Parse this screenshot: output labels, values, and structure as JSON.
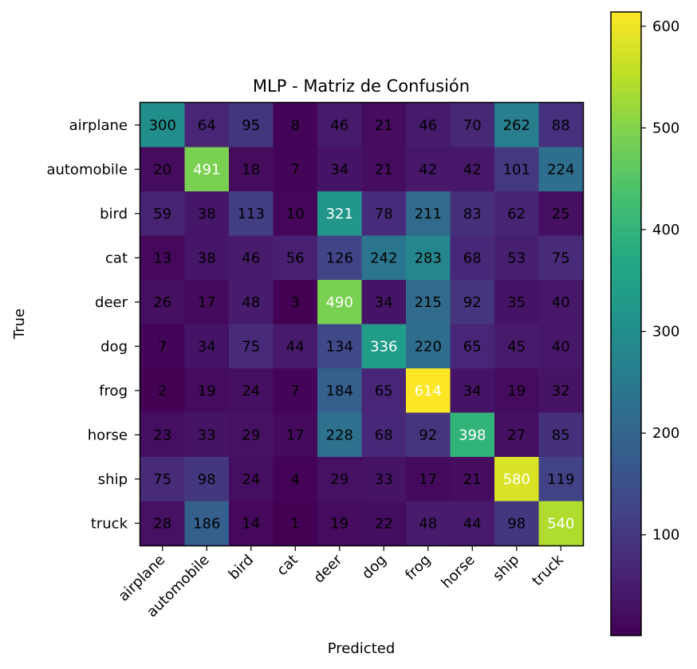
{
  "chart_data": {
    "type": "heatmap",
    "title": "MLP - Matriz de Confusión",
    "xlabel": "Predicted",
    "ylabel": "True",
    "x_categories": [
      "airplane",
      "automobile",
      "bird",
      "cat",
      "deer",
      "dog",
      "frog",
      "horse",
      "ship",
      "truck"
    ],
    "y_categories": [
      "airplane",
      "automobile",
      "bird",
      "cat",
      "deer",
      "dog",
      "frog",
      "horse",
      "ship",
      "truck"
    ],
    "values": [
      [
        300,
        64,
        95,
        8,
        46,
        21,
        46,
        70,
        262,
        88
      ],
      [
        20,
        491,
        18,
        7,
        34,
        21,
        42,
        42,
        101,
        224
      ],
      [
        59,
        38,
        113,
        10,
        321,
        78,
        211,
        83,
        62,
        25
      ],
      [
        13,
        38,
        46,
        56,
        126,
        242,
        283,
        68,
        53,
        75
      ],
      [
        26,
        17,
        48,
        3,
        490,
        34,
        215,
        92,
        35,
        40
      ],
      [
        7,
        34,
        75,
        44,
        134,
        336,
        220,
        65,
        45,
        40
      ],
      [
        2,
        19,
        24,
        7,
        184,
        65,
        614,
        34,
        19,
        32
      ],
      [
        23,
        33,
        29,
        17,
        228,
        68,
        92,
        398,
        27,
        85
      ],
      [
        75,
        98,
        24,
        4,
        29,
        33,
        17,
        21,
        580,
        119
      ],
      [
        28,
        186,
        14,
        1,
        19,
        22,
        48,
        44,
        98,
        540
      ]
    ],
    "colormap": "viridis",
    "color_range": [
      1,
      614
    ],
    "colorbar_ticks": [
      100,
      200,
      300,
      400,
      500,
      600
    ],
    "text_color_threshold": 307
  }
}
